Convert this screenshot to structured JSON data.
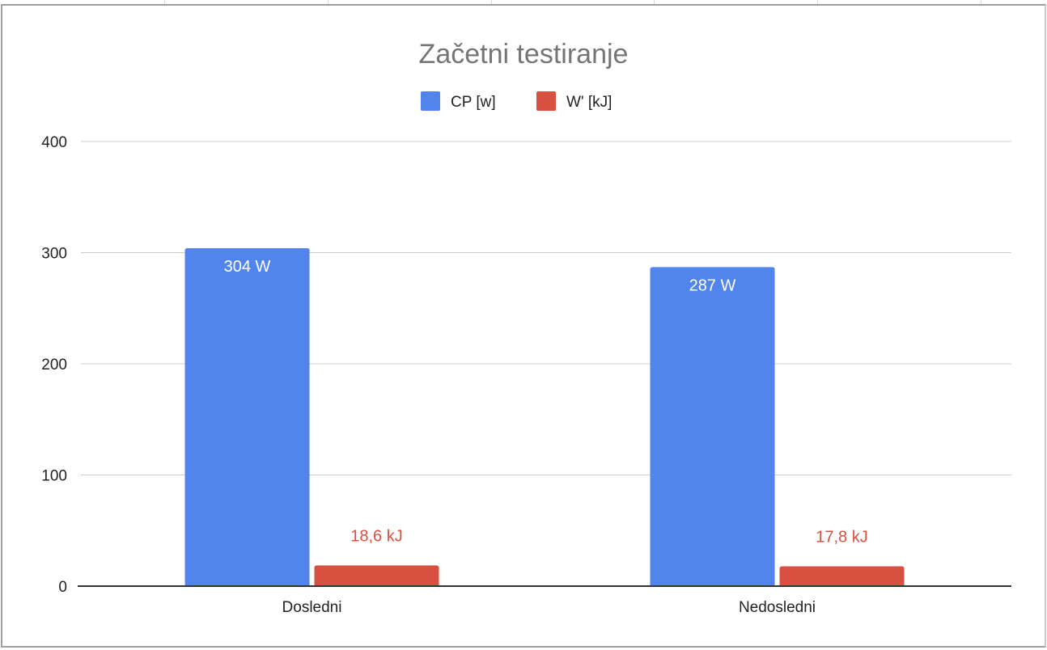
{
  "chart_data": {
    "type": "bar",
    "title": "Začetni testiranje",
    "categories": [
      "Dosledni",
      "Nedosledni"
    ],
    "series": [
      {
        "name": "CP [w]",
        "color": "#5185EC",
        "values": [
          304,
          287
        ],
        "labels": [
          "304 W",
          "287 W"
        ],
        "label_color": "#ffffff"
      },
      {
        "name": "W' [kJ]",
        "color": "#D85140",
        "values": [
          18.6,
          17.8
        ],
        "labels": [
          "18,6 kJ",
          "17,8 kJ"
        ],
        "label_color": "#D85140"
      }
    ],
    "xlabel": "",
    "ylabel": "",
    "ylim": [
      0,
      400
    ],
    "yticks": [
      0,
      100,
      200,
      300,
      400
    ],
    "grid": true,
    "legend": "top-center"
  }
}
